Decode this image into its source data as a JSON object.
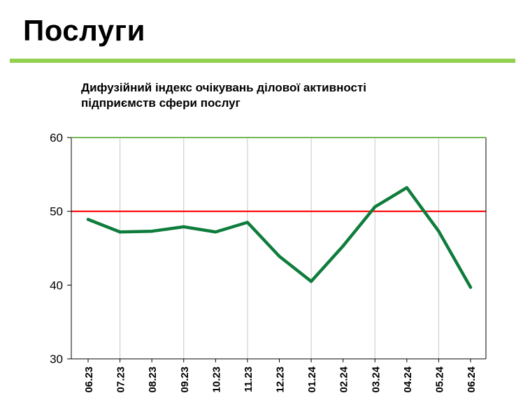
{
  "page": {
    "title": "Послуги"
  },
  "chart_data": {
    "type": "line",
    "title": "Дифузійний індекс очікувань ділової активності\nпідприємств сфери послуг",
    "xlabel": "",
    "ylabel": "",
    "categories": [
      "06.23",
      "07.23",
      "08.23",
      "09.23",
      "10.23",
      "11.23",
      "12.23",
      "01.24",
      "02.24",
      "03.24",
      "04.24",
      "05.24",
      "06.24"
    ],
    "series": [
      {
        "values": [
          48.9,
          47.2,
          47.3,
          47.9,
          47.2,
          48.5,
          43.9,
          40.5,
          45.3,
          50.6,
          53.2,
          47.3,
          39.7
        ],
        "color": "#0e7d3c"
      }
    ],
    "reference_line": {
      "value": 50,
      "color": "#ff0000"
    },
    "ylim": [
      30,
      60
    ],
    "yticks": [
      30,
      40,
      50,
      60
    ],
    "grid": "vertical",
    "x_tick_rotation": "vertical",
    "colors": {
      "title_rule": "#92d050",
      "top_border": "#76b852",
      "grid": "#d0d0d0",
      "axis": "#000000"
    }
  }
}
